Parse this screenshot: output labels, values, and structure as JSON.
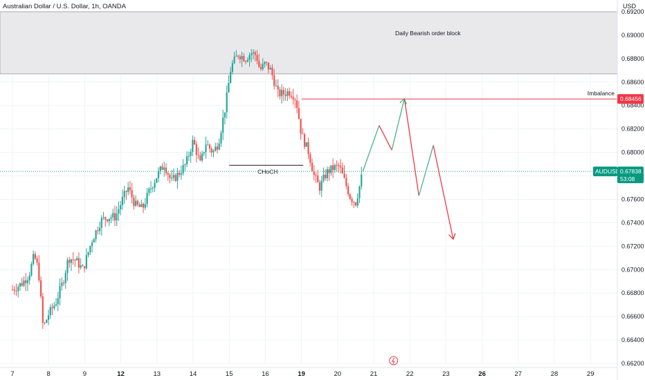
{
  "header": {
    "title": "Australian Dollar / U.S. Dollar, 1h, OANDA",
    "currency": "USD"
  },
  "colors": {
    "up": "#26a69a",
    "down": "#ef5350",
    "zone": "#e9e9ec",
    "zone_border": "#9598a1",
    "imbalance": "#f23645",
    "price": "#089981",
    "projection_up": "#4caf8e",
    "projection_down": "#f23645"
  },
  "chart_data": {
    "type": "candlestick",
    "symbol": "AUDUSD",
    "ylim": [
      0.662,
      0.692
    ],
    "y_ticks": [
      0.692,
      0.69,
      0.688,
      0.686,
      0.684,
      0.682,
      0.68,
      0.678,
      0.676,
      0.674,
      0.672,
      0.67,
      0.668,
      0.666,
      0.664,
      0.662
    ],
    "x_ticks": [
      {
        "label": "7",
        "bold": false
      },
      {
        "label": "8",
        "bold": false
      },
      {
        "label": "9",
        "bold": false
      },
      {
        "label": "12",
        "bold": true
      },
      {
        "label": "13",
        "bold": false
      },
      {
        "label": "14",
        "bold": false
      },
      {
        "label": "15",
        "bold": false
      },
      {
        "label": "16",
        "bold": false
      },
      {
        "label": "19",
        "bold": true
      },
      {
        "label": "20",
        "bold": false
      },
      {
        "label": "21",
        "bold": false
      },
      {
        "label": "22",
        "bold": false
      },
      {
        "label": "23",
        "bold": false
      },
      {
        "label": "26",
        "bold": true
      },
      {
        "label": "27",
        "bold": false
      },
      {
        "label": "28",
        "bold": false
      },
      {
        "label": "29",
        "bold": false
      }
    ],
    "price_path": [
      [
        0,
        0.6683
      ],
      [
        0.25,
        0.6688
      ],
      [
        0.45,
        0.6695
      ],
      [
        0.6,
        0.6712
      ],
      [
        0.72,
        0.67
      ],
      [
        0.85,
        0.665
      ],
      [
        1.0,
        0.6662
      ],
      [
        1.2,
        0.6672
      ],
      [
        1.4,
        0.669
      ],
      [
        1.55,
        0.671
      ],
      [
        1.75,
        0.6708
      ],
      [
        1.95,
        0.67
      ],
      [
        2.2,
        0.6725
      ],
      [
        2.45,
        0.6742
      ],
      [
        2.65,
        0.6745
      ],
      [
        2.85,
        0.6745
      ],
      [
        3.05,
        0.676
      ],
      [
        3.2,
        0.677
      ],
      [
        3.4,
        0.6755
      ],
      [
        3.6,
        0.6752
      ],
      [
        3.8,
        0.6768
      ],
      [
        4.0,
        0.678
      ],
      [
        4.2,
        0.679
      ],
      [
        4.4,
        0.6775
      ],
      [
        4.6,
        0.6782
      ],
      [
        4.8,
        0.679
      ],
      [
        5.0,
        0.681
      ],
      [
        5.2,
        0.679
      ],
      [
        5.35,
        0.6808
      ],
      [
        5.55,
        0.68
      ],
      [
        5.7,
        0.6808
      ],
      [
        5.9,
        0.684
      ],
      [
        6.05,
        0.6873
      ],
      [
        6.25,
        0.6884
      ],
      [
        6.45,
        0.688
      ],
      [
        6.6,
        0.6885
      ],
      [
        6.75,
        0.6883
      ],
      [
        6.85,
        0.687
      ],
      [
        7.0,
        0.6876
      ],
      [
        7.15,
        0.687
      ],
      [
        7.35,
        0.685
      ],
      [
        7.5,
        0.685
      ],
      [
        7.65,
        0.6852
      ],
      [
        7.75,
        0.685
      ],
      [
        7.85,
        0.6845
      ],
      [
        8.0,
        0.6815
      ],
      [
        8.2,
        0.68
      ],
      [
        8.35,
        0.678
      ],
      [
        8.5,
        0.677
      ],
      [
        8.7,
        0.6783
      ],
      [
        8.9,
        0.6787
      ],
      [
        9.05,
        0.6788
      ],
      [
        9.2,
        0.6775
      ],
      [
        9.35,
        0.6762
      ],
      [
        9.5,
        0.6757
      ],
      [
        9.6,
        0.677
      ],
      [
        9.7,
        0.6784
      ]
    ],
    "order_block": {
      "label": "Daily Bearish order block",
      "top": 0.692,
      "bottom": 0.6867
    },
    "imbalance": {
      "label": "Imbalance",
      "price": 0.68456,
      "badge": "0.68456",
      "x_start": 8.0
    },
    "choch": {
      "label": "CHoCH",
      "price": 0.6789,
      "x_start": 6.0,
      "x_end": 8.05
    },
    "current_price": {
      "symbol": "AUDUSD",
      "price": 0.67838,
      "badge": "0.67838",
      "countdown": "53:08"
    },
    "projection": [
      [
        9.7,
        0.6784
      ],
      [
        10.15,
        0.6823
      ],
      [
        10.5,
        0.6802
      ],
      [
        10.85,
        0.6846
      ],
      [
        11.25,
        0.6763
      ],
      [
        11.65,
        0.6806
      ],
      [
        12.2,
        0.6726
      ]
    ]
  }
}
